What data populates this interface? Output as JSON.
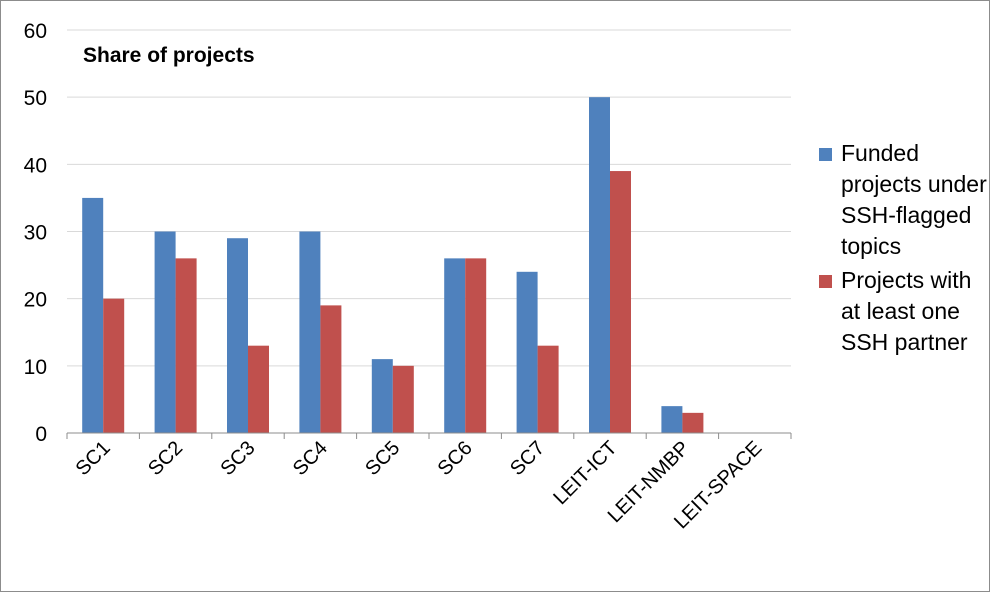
{
  "chart_data": {
    "type": "bar",
    "title": "Share of projects",
    "categories": [
      "SC1",
      "SC2",
      "SC3",
      "SC4",
      "SC5",
      "SC6",
      "SC7",
      "LEIT-ICT",
      "LEIT-NMBP",
      "LEIT-SPACE"
    ],
    "series": [
      {
        "name": "Funded projects under SSH-flagged topics",
        "color": "#4f81bd",
        "values": [
          35,
          30,
          29,
          30,
          11,
          26,
          24,
          50,
          4,
          0
        ]
      },
      {
        "name": "Projects with at least one SSH partner",
        "color": "#c0504d",
        "values": [
          20,
          26,
          13,
          19,
          10,
          26,
          13,
          39,
          3,
          0
        ]
      }
    ],
    "ylim": [
      0,
      60
    ],
    "yticks": [
      "0",
      "10",
      "20",
      "30",
      "40",
      "50",
      "60"
    ],
    "grid": true,
    "legend_position": "right"
  }
}
